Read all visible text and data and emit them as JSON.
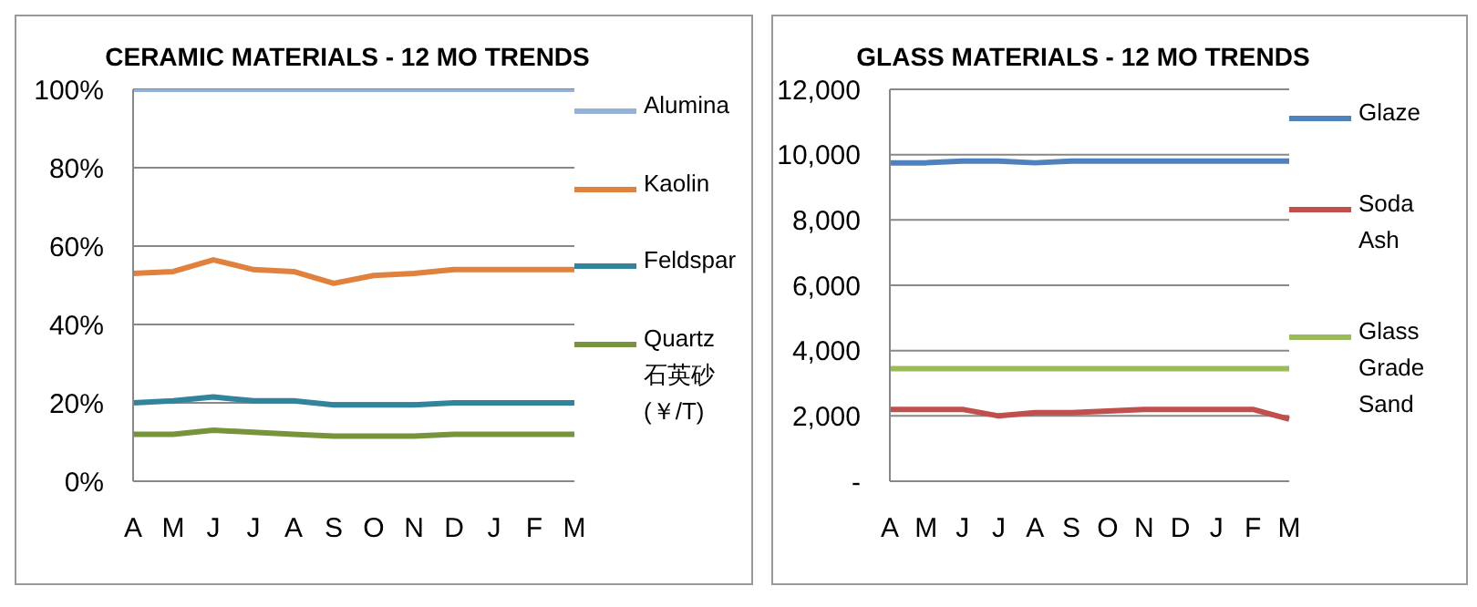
{
  "chart_data": [
    {
      "type": "line",
      "title": "CERAMIC MATERIALS - 12 MO TRENDS",
      "categories": [
        "A",
        "M",
        "J",
        "J",
        "A",
        "S",
        "O",
        "N",
        "D",
        "J",
        "F",
        "M"
      ],
      "series": [
        {
          "name": "Alumina",
          "color": "#95b3d7",
          "values": [
            100,
            100,
            100,
            100,
            100,
            100,
            100,
            100,
            100,
            100,
            100,
            100
          ]
        },
        {
          "name": "Kaolin",
          "color": "#e0823d",
          "values": [
            53,
            53.5,
            56.5,
            54,
            53.5,
            50.5,
            52.5,
            53,
            54,
            54,
            54,
            54
          ]
        },
        {
          "name": "Feldspar",
          "color": "#31849b",
          "values": [
            20,
            20.5,
            21.5,
            20.5,
            20.5,
            19.5,
            19.5,
            19.5,
            20,
            20,
            20,
            20
          ]
        },
        {
          "name": "Quartz 石英砂 (￥/T)",
          "color": "#77933c",
          "values": [
            12,
            12,
            13,
            12.5,
            12,
            11.5,
            11.5,
            11.5,
            12,
            12,
            12,
            12
          ]
        }
      ],
      "ylim": [
        0,
        100
      ],
      "yticks": [
        {
          "value": 0,
          "label": "0%"
        },
        {
          "value": 20,
          "label": "20%"
        },
        {
          "value": 40,
          "label": "40%"
        },
        {
          "value": 60,
          "label": "60%"
        },
        {
          "value": 80,
          "label": "80%"
        },
        {
          "value": 100,
          "label": "100%"
        }
      ],
      "grid": "y",
      "legend": "right",
      "marker": "none"
    },
    {
      "type": "line",
      "title": "GLASS MATERIALS - 12 MO TRENDS",
      "categories": [
        "A",
        "M",
        "J",
        "J",
        "A",
        "S",
        "O",
        "N",
        "D",
        "J",
        "F",
        "M"
      ],
      "series": [
        {
          "name": "Glaze",
          "color": "#4f81bd",
          "values": [
            9750,
            9750,
            9800,
            9800,
            9750,
            9800,
            9800,
            9800,
            9800,
            9800,
            9800,
            9800
          ]
        },
        {
          "name": "Soda Ash",
          "color": "#c0504d",
          "values": [
            2200,
            2200,
            2200,
            2000,
            2100,
            2100,
            2150,
            2200,
            2200,
            2200,
            2200,
            1900
          ]
        },
        {
          "name": "Glass Grade Sand",
          "color": "#9bbb59",
          "values": [
            3450,
            3450,
            3450,
            3450,
            3450,
            3450,
            3450,
            3450,
            3450,
            3450,
            3450,
            3450
          ]
        }
      ],
      "ylim": [
        0,
        12000
      ],
      "yticks": [
        {
          "value": 0,
          "label": "-"
        },
        {
          "value": 2000,
          "label": "2,000"
        },
        {
          "value": 4000,
          "label": "4,000"
        },
        {
          "value": 6000,
          "label": "6,000"
        },
        {
          "value": 8000,
          "label": "8,000"
        },
        {
          "value": 10000,
          "label": "10,000"
        },
        {
          "value": 12000,
          "label": "12,000"
        }
      ],
      "grid": "y",
      "legend": "right",
      "marker": "none"
    }
  ]
}
